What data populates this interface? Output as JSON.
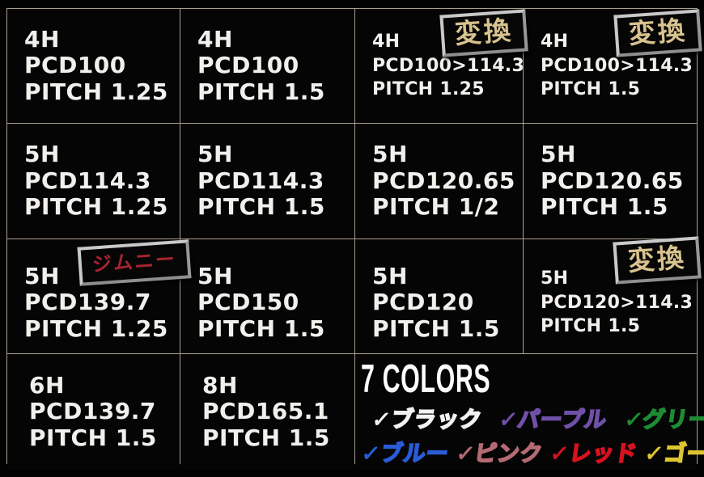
{
  "spec_grid": {
    "cells": [
      {
        "lines": [
          "4H",
          "PCD100",
          "PITCH 1.25"
        ]
      },
      {
        "lines": [
          "4H",
          "PCD100",
          "PITCH 1.5"
        ]
      },
      {
        "lines": [
          "4H",
          "PCD100>114.3",
          "PITCH 1.25"
        ],
        "badge": "変換"
      },
      {
        "lines": [
          "4H",
          "PCD100>114.3",
          "PITCH 1.5"
        ],
        "badge": "変換"
      },
      {
        "lines": [
          "5H",
          "PCD114.3",
          "PITCH 1.25"
        ]
      },
      {
        "lines": [
          "5H",
          "PCD114.3",
          "PITCH 1.5"
        ]
      },
      {
        "lines": [
          "5H",
          "PCD120.65",
          "PITCH 1/2"
        ]
      },
      {
        "lines": [
          "5H",
          "PCD120.65",
          "PITCH 1.5"
        ]
      },
      {
        "lines": [
          "5H",
          "PCD139.7",
          "PITCH 1.25"
        ],
        "badge": "ジムニー"
      },
      {
        "lines": [
          "5H",
          "PCD150",
          "PITCH 1.5"
        ]
      },
      {
        "lines": [
          "5H",
          "PCD120",
          "PITCH 1.5"
        ]
      },
      {
        "lines": [
          "5H",
          "PCD120>114.3",
          "PITCH 1.5"
        ],
        "badge": "変換"
      },
      {
        "lines": [
          "6H",
          "PCD139.7",
          "PITCH 1.5"
        ]
      },
      {
        "lines": [
          "8H",
          "PCD165.1",
          "PITCH 1.5"
        ]
      }
    ],
    "badge_style": {
      "convert_text_color": "#d8c28e",
      "jimny_text_color": "#a8242f",
      "border_color": "#b9b9b9"
    },
    "grid_line_color": "#a89e8e",
    "cell_background": "#050505",
    "text_color": "#f2f0ec"
  },
  "colors_section": {
    "title": "7 COLORS",
    "check": "✓",
    "items": [
      {
        "name": "black",
        "label": "ブラック",
        "hex": "#f2f2f2"
      },
      {
        "name": "purple",
        "label": "パープル",
        "hex": "#7050a8"
      },
      {
        "name": "green",
        "label": "グリーン",
        "hex": "#1e8c32"
      },
      {
        "name": "blue",
        "label": "ブルー",
        "hex": "#2a5cd8"
      },
      {
        "name": "pink",
        "label": "ピンク",
        "hex": "#b66a74"
      },
      {
        "name": "red",
        "label": "レッド",
        "hex": "#d6121e"
      },
      {
        "name": "gold",
        "label": "ゴールド",
        "hex": "#ddc530"
      }
    ]
  }
}
